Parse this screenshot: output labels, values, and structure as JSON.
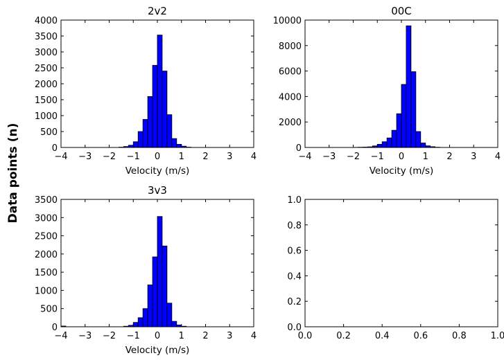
{
  "figure": {
    "ylabel": "Data points (n)"
  },
  "chart_data": [
    {
      "type": "bar",
      "title": "2v2",
      "xlabel": "Velocity (m/s)",
      "ylabel": "",
      "xlim": [
        -4,
        4
      ],
      "ylim": [
        0,
        4000
      ],
      "xticks": [
        "−4",
        "−3",
        "−2",
        "−1",
        "0",
        "1",
        "2",
        "3",
        "4"
      ],
      "yticks": [
        "0",
        "500",
        "1000",
        "1500",
        "2000",
        "2500",
        "3000",
        "3500",
        "4000"
      ],
      "bar_color": "#0000ff",
      "bins": [
        {
          "x0": -1.6,
          "x1": -1.4,
          "value": 10
        },
        {
          "x0": -1.4,
          "x1": -1.2,
          "value": 30
        },
        {
          "x0": -1.2,
          "x1": -1.0,
          "value": 70
        },
        {
          "x0": -1.0,
          "x1": -0.8,
          "value": 180
        },
        {
          "x0": -0.8,
          "x1": -0.6,
          "value": 500
        },
        {
          "x0": -0.6,
          "x1": -0.4,
          "value": 880
        },
        {
          "x0": -0.4,
          "x1": -0.2,
          "value": 1600
        },
        {
          "x0": -0.2,
          "x1": 0.0,
          "value": 2580
        },
        {
          "x0": 0.0,
          "x1": 0.2,
          "value": 3530
        },
        {
          "x0": 0.2,
          "x1": 0.4,
          "value": 2400
        },
        {
          "x0": 0.4,
          "x1": 0.6,
          "value": 1030
        },
        {
          "x0": 0.6,
          "x1": 0.8,
          "value": 280
        },
        {
          "x0": 0.8,
          "x1": 1.0,
          "value": 100
        },
        {
          "x0": 1.0,
          "x1": 1.2,
          "value": 40
        },
        {
          "x0": 1.2,
          "x1": 1.4,
          "value": 10
        }
      ]
    },
    {
      "type": "bar",
      "title": "00C",
      "xlabel": "Velocity (m/s)",
      "ylabel": "",
      "xlim": [
        -4,
        4
      ],
      "ylim": [
        0,
        10000
      ],
      "xticks": [
        "−4",
        "−3",
        "−2",
        "−1",
        "0",
        "1",
        "2",
        "3",
        "4"
      ],
      "yticks": [
        "0",
        "2000",
        "4000",
        "6000",
        "8000",
        "10000"
      ],
      "bar_color": "#0000ff",
      "bins": [
        {
          "x0": -2.0,
          "x1": -1.8,
          "value": 10
        },
        {
          "x0": -1.8,
          "x1": -1.6,
          "value": 20
        },
        {
          "x0": -1.6,
          "x1": -1.4,
          "value": 30
        },
        {
          "x0": -1.4,
          "x1": -1.2,
          "value": 50
        },
        {
          "x0": -1.2,
          "x1": -1.0,
          "value": 120
        },
        {
          "x0": -1.0,
          "x1": -0.8,
          "value": 250
        },
        {
          "x0": -0.8,
          "x1": -0.6,
          "value": 450
        },
        {
          "x0": -0.6,
          "x1": -0.4,
          "value": 750
        },
        {
          "x0": -0.4,
          "x1": -0.2,
          "value": 1350
        },
        {
          "x0": -0.2,
          "x1": 0.0,
          "value": 2650
        },
        {
          "x0": 0.0,
          "x1": 0.2,
          "value": 4950
        },
        {
          "x0": 0.2,
          "x1": 0.4,
          "value": 9550
        },
        {
          "x0": 0.4,
          "x1": 0.6,
          "value": 5950
        },
        {
          "x0": 0.6,
          "x1": 0.8,
          "value": 1250
        },
        {
          "x0": 0.8,
          "x1": 1.0,
          "value": 350
        },
        {
          "x0": 1.0,
          "x1": 1.2,
          "value": 130
        },
        {
          "x0": 1.2,
          "x1": 1.4,
          "value": 60
        },
        {
          "x0": 1.4,
          "x1": 1.6,
          "value": 20
        }
      ]
    },
    {
      "type": "bar",
      "title": "3v3",
      "xlabel": "Velocity (m/s)",
      "ylabel": "",
      "xlim": [
        -4,
        4
      ],
      "ylim": [
        0,
        3500
      ],
      "xticks": [
        "−4",
        "−3",
        "−2",
        "−1",
        "0",
        "1",
        "2",
        "3",
        "4"
      ],
      "yticks": [
        "0",
        "500",
        "1000",
        "1500",
        "2000",
        "2500",
        "3000",
        "3500"
      ],
      "bar_color": "#0000ff",
      "bins": [
        {
          "x0": -4.0,
          "x1": -3.8,
          "value": 20
        },
        {
          "x0": -1.4,
          "x1": -1.2,
          "value": 15
        },
        {
          "x0": -1.2,
          "x1": -1.0,
          "value": 40
        },
        {
          "x0": -1.0,
          "x1": -0.8,
          "value": 120
        },
        {
          "x0": -0.8,
          "x1": -0.6,
          "value": 250
        },
        {
          "x0": -0.6,
          "x1": -0.4,
          "value": 500
        },
        {
          "x0": -0.4,
          "x1": -0.2,
          "value": 1150
        },
        {
          "x0": -0.2,
          "x1": 0.0,
          "value": 1920
        },
        {
          "x0": 0.0,
          "x1": 0.2,
          "value": 3030
        },
        {
          "x0": 0.2,
          "x1": 0.4,
          "value": 2220
        },
        {
          "x0": 0.4,
          "x1": 0.6,
          "value": 650
        },
        {
          "x0": 0.6,
          "x1": 0.8,
          "value": 150
        },
        {
          "x0": 0.8,
          "x1": 1.0,
          "value": 50
        },
        {
          "x0": 1.0,
          "x1": 1.2,
          "value": 15
        }
      ]
    },
    {
      "type": "bar",
      "title": "",
      "xlabel": "",
      "ylabel": "",
      "xlim": [
        0,
        1
      ],
      "ylim": [
        0,
        1
      ],
      "xticks": [
        "0.0",
        "0.2",
        "0.4",
        "0.6",
        "0.8",
        "1.0"
      ],
      "yticks": [
        "0.0",
        "0.2",
        "0.4",
        "0.6",
        "0.8",
        "1.0"
      ],
      "bar_color": "#0000ff",
      "bins": []
    }
  ]
}
